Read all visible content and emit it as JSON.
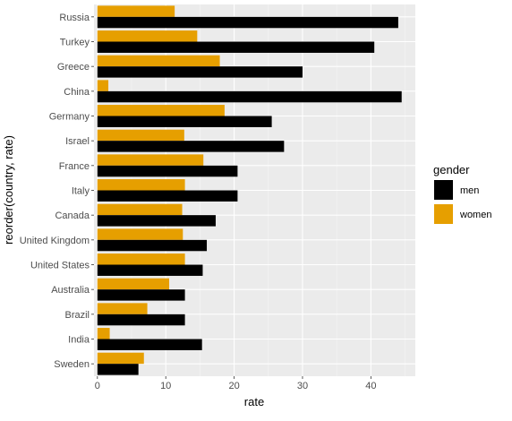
{
  "chart_data": {
    "type": "bar",
    "orientation": "horizontal",
    "title": "",
    "xlabel": "rate",
    "ylabel": "reorder(country, rate)",
    "xlim": [
      -0.5,
      46.5
    ],
    "xticks": [
      0,
      10,
      20,
      30,
      40
    ],
    "grid": true,
    "legend": {
      "title": "gender",
      "position": "right"
    },
    "categories": [
      "Russia",
      "Turkey",
      "Greece",
      "China",
      "Germany",
      "Israel",
      "France",
      "Italy",
      "Canada",
      "United Kingdom",
      "United States",
      "Australia",
      "Brazil",
      "India",
      "Sweden"
    ],
    "series": [
      {
        "name": "men",
        "color": "#000000",
        "values": [
          44.0,
          40.5,
          30.0,
          44.5,
          25.5,
          27.3,
          20.5,
          20.5,
          17.3,
          16.0,
          15.4,
          12.8,
          12.8,
          15.3,
          6.0
        ]
      },
      {
        "name": "women",
        "color": "#E69F00",
        "values": [
          11.3,
          14.6,
          17.9,
          1.6,
          18.6,
          12.7,
          15.5,
          12.8,
          12.4,
          12.5,
          12.8,
          10.5,
          7.3,
          1.8,
          6.8
        ]
      }
    ]
  }
}
